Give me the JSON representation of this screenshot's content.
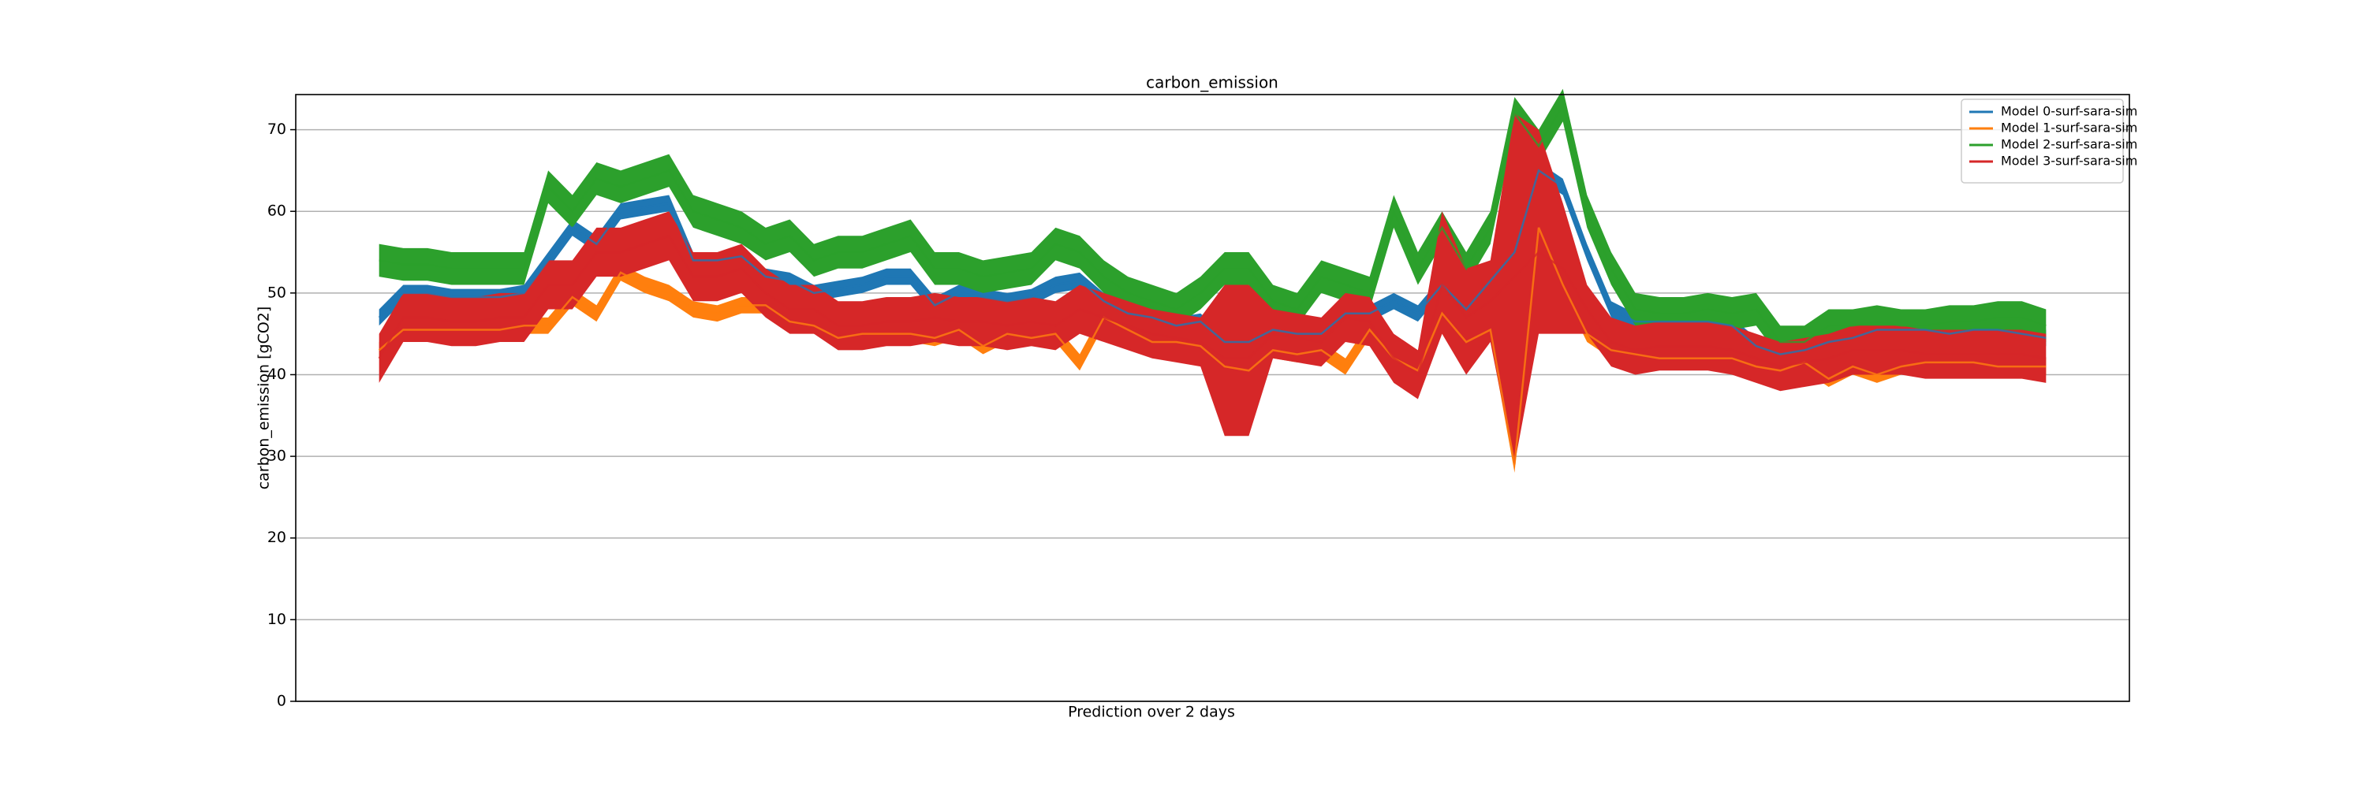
{
  "chart_data": {
    "type": "band-line",
    "title": "carbon_emission",
    "x_label": "Prediction over 2 days",
    "y_label": "carbon_emission [gCO2]",
    "ylim": [
      0,
      74.3
    ],
    "yticks": [
      0,
      10,
      20,
      30,
      40,
      50,
      60,
      70
    ],
    "grid": true,
    "legend": "upper right",
    "series": [
      {
        "name": "Model 0-surf-sara-sim",
        "color": "#1f77b4",
        "values": [
          47,
          50,
          50,
          49.5,
          49.5,
          49.5,
          50,
          54,
          58,
          56,
          60,
          60.5,
          61,
          54,
          54,
          54.5,
          52,
          51.5,
          50,
          50.5,
          51,
          52,
          52,
          48.5,
          50,
          49.5,
          49,
          49.5,
          51,
          51.5,
          49,
          47.5,
          47,
          46,
          46.5,
          44,
          44,
          45.5,
          45,
          45,
          47.5,
          47.5,
          49,
          47.5,
          51,
          48,
          51.5,
          55,
          65,
          63,
          55,
          48,
          46.5,
          46.5,
          46.5,
          46.5,
          46,
          43.5,
          42.5,
          43,
          44,
          44.5,
          45.5,
          45.5,
          45.5,
          45,
          45.5,
          45.5,
          45,
          44.5
        ],
        "lower": [
          46,
          49,
          49,
          48.5,
          48.5,
          48.5,
          49,
          53,
          57,
          55,
          59,
          59.5,
          60,
          53,
          53,
          53.5,
          51,
          50.5,
          49,
          49.5,
          50,
          51,
          51,
          47.5,
          49,
          48.5,
          48,
          48.5,
          50,
          50.5,
          48,
          46.5,
          46,
          45,
          45.5,
          43,
          43,
          44.5,
          44,
          44,
          46.5,
          46.5,
          48,
          46.5,
          50,
          47,
          50.5,
          54,
          64,
          62,
          54,
          47,
          45.5,
          45.5,
          45.5,
          45.5,
          45,
          42.5,
          41.5,
          42,
          43,
          43.5,
          44.5,
          44.5,
          44.5,
          44,
          44.5,
          44.5,
          44,
          43.5
        ],
        "upper": [
          48,
          51,
          51,
          50.5,
          50.5,
          50.5,
          51,
          55,
          59,
          57,
          61,
          61.5,
          62,
          55,
          55,
          55.5,
          53,
          52.5,
          51,
          51.5,
          52,
          53,
          53,
          49.5,
          51,
          50.5,
          50,
          50.5,
          52,
          52.5,
          50,
          48.5,
          48,
          47,
          47.5,
          45,
          45,
          46.5,
          46,
          46,
          48.5,
          48.5,
          50,
          48.5,
          52,
          49,
          52.5,
          56,
          66,
          64,
          56,
          49,
          47.5,
          47.5,
          47.5,
          47.5,
          47,
          44.5,
          43.5,
          44,
          45,
          45.5,
          46.5,
          46.5,
          46.5,
          46,
          46.5,
          46.5,
          46,
          45.5
        ]
      },
      {
        "name": "Model 1-surf-sara-sim",
        "color": "#ff7f0e",
        "values": [
          43,
          45.5,
          45.5,
          45.5,
          45.5,
          45.5,
          46,
          46,
          49.5,
          47.5,
          52.5,
          51,
          50,
          48,
          47.5,
          48.5,
          48.5,
          46.5,
          46,
          44.5,
          45,
          45,
          45,
          44.5,
          45.5,
          43.5,
          45,
          44.5,
          45,
          41.5,
          47,
          45.5,
          44,
          44,
          43.5,
          41,
          40.5,
          43,
          42.5,
          43,
          41,
          45.5,
          42,
          40.5,
          47.5,
          44,
          45.5,
          29,
          58,
          51,
          45,
          43,
          42.5,
          42,
          42,
          42,
          42,
          41,
          40.5,
          41.5,
          39.5,
          41,
          40,
          41,
          41.5,
          41.5,
          41.5,
          41,
          41,
          41
        ],
        "lower": [
          42,
          44.5,
          44.5,
          44.5,
          44.5,
          44.5,
          45,
          45,
          48.5,
          46.5,
          51.5,
          50,
          49,
          47,
          46.5,
          47.5,
          47.5,
          45.5,
          45,
          43.5,
          44,
          44,
          44,
          43.5,
          44.5,
          42.5,
          44,
          43.5,
          44,
          40.5,
          46,
          44.5,
          43,
          43,
          42.5,
          40,
          39.5,
          42,
          41.5,
          42,
          40,
          44.5,
          41,
          39.5,
          46.5,
          43,
          44.5,
          28,
          57,
          50,
          44,
          42,
          41.5,
          41,
          41,
          41,
          41,
          40,
          39.5,
          40.5,
          38.5,
          40,
          39,
          40,
          40.5,
          40.5,
          40.5,
          40,
          40,
          40
        ],
        "upper": [
          44,
          46.5,
          46.5,
          46.5,
          46.5,
          46.5,
          47,
          47,
          50.5,
          48.5,
          53.5,
          52,
          51,
          49,
          48.5,
          49.5,
          49.5,
          47.5,
          47,
          45.5,
          46,
          46,
          46,
          45.5,
          46.5,
          44.5,
          46,
          45.5,
          46,
          42.5,
          48,
          46.5,
          45,
          45,
          44.5,
          42,
          41.5,
          44,
          43.5,
          44,
          42,
          46.5,
          43,
          41.5,
          48.5,
          45,
          46.5,
          30,
          59,
          52,
          46,
          44,
          43.5,
          43,
          43,
          43,
          43,
          42,
          41.5,
          42.5,
          40.5,
          42,
          41,
          42,
          42.5,
          42.5,
          42.5,
          42,
          42,
          42
        ]
      },
      {
        "name": "Model 2-surf-sara-sim",
        "color": "#2ca02c",
        "values": [
          54,
          53.5,
          53.5,
          53,
          53,
          53,
          53,
          63,
          60,
          64,
          63,
          64,
          65,
          60,
          59,
          58,
          56,
          57,
          54,
          55,
          55,
          56,
          57,
          53,
          53,
          52,
          52.5,
          53,
          56,
          55,
          52,
          50,
          49,
          48,
          50,
          53,
          53,
          49,
          48,
          52,
          51,
          50,
          60,
          53,
          58,
          53,
          58,
          72,
          68,
          73,
          60,
          53,
          48,
          47.5,
          47.5,
          48,
          47.5,
          48,
          44,
          44,
          46,
          46,
          46.5,
          46,
          46,
          46.5,
          46.5,
          47,
          47,
          46
        ],
        "lower": [
          52,
          51.5,
          51.5,
          51,
          51,
          51,
          51,
          61,
          58,
          62,
          61,
          62,
          63,
          58,
          57,
          56,
          54,
          55,
          52,
          53,
          53,
          54,
          55,
          51,
          51,
          50,
          50.5,
          51,
          54,
          53,
          50,
          48,
          47,
          46,
          48,
          51,
          51,
          47,
          46,
          50,
          49,
          48,
          58,
          51,
          56,
          51,
          56,
          70,
          66,
          71,
          58,
          51,
          46,
          45.5,
          45.5,
          46,
          45.5,
          46,
          42,
          42,
          44,
          44,
          44.5,
          44,
          44,
          44.5,
          44.5,
          45,
          45,
          44
        ],
        "upper": [
          56,
          55.5,
          55.5,
          55,
          55,
          55,
          55,
          65,
          62,
          66,
          65,
          66,
          67,
          62,
          61,
          60,
          58,
          59,
          56,
          57,
          57,
          58,
          59,
          55,
          55,
          54,
          54.5,
          55,
          58,
          57,
          54,
          52,
          51,
          50,
          52,
          55,
          55,
          51,
          50,
          54,
          53,
          52,
          62,
          55,
          60,
          55,
          60,
          74,
          70,
          75,
          62,
          55,
          50,
          49.5,
          49.5,
          50,
          49.5,
          50,
          46,
          46,
          48,
          48,
          48.5,
          48,
          48,
          48.5,
          48.5,
          49,
          49,
          48
        ]
      },
      {
        "name": "Model 3-surf-sara-sim",
        "color": "#d62728",
        "values": [
          42,
          47,
          47,
          46.5,
          46.5,
          47,
          47,
          51,
          51,
          55,
          55,
          56,
          57,
          52,
          52,
          53,
          50,
          48,
          48,
          46,
          46,
          46.5,
          46.5,
          47,
          46.5,
          46.5,
          46,
          46.5,
          46,
          48,
          47,
          46,
          45,
          44.5,
          44,
          42,
          42,
          45,
          44.5,
          44,
          47,
          46.5,
          42,
          40,
          51,
          47,
          49,
          52,
          55,
          53,
          48,
          44,
          43,
          43.5,
          43.5,
          43.5,
          43,
          42,
          41,
          41.5,
          42,
          43,
          43,
          43,
          42.5,
          42.5,
          42.5,
          42.5,
          42.5,
          42
        ],
        "lower": [
          39,
          44,
          44,
          43.5,
          43.5,
          44,
          44,
          48,
          48,
          52,
          52,
          53,
          54,
          49,
          49,
          50,
          47,
          45,
          45,
          43,
          43,
          43.5,
          43.5,
          44,
          43.5,
          43.5,
          43,
          43.5,
          43,
          45,
          44,
          43,
          42,
          41.5,
          41,
          32.5,
          32.5,
          42,
          41.5,
          41,
          44,
          43.5,
          39,
          37,
          45,
          40,
          44,
          29,
          45,
          45,
          45,
          41,
          40,
          40.5,
          40.5,
          40.5,
          40,
          39,
          38,
          38.5,
          39,
          40,
          40,
          40,
          39.5,
          39.5,
          39.5,
          39.5,
          39.5,
          39
        ],
        "upper": [
          45,
          50,
          50,
          49.5,
          49.5,
          50,
          50,
          54,
          54,
          58,
          58,
          59,
          60,
          55,
          55,
          56,
          53,
          51,
          51,
          49,
          49,
          49.5,
          49.5,
          50,
          49.5,
          49.5,
          49,
          49.5,
          49,
          51,
          50,
          49,
          48,
          47.5,
          47,
          51,
          51,
          48,
          47.5,
          47,
          50,
          49.5,
          45,
          43,
          60,
          53,
          54,
          72,
          70,
          61,
          51,
          47,
          46,
          46.5,
          46.5,
          46.5,
          46,
          45,
          44,
          44.5,
          45,
          46,
          46,
          46,
          45.5,
          45.5,
          45.5,
          45.5,
          45.5,
          45
        ]
      }
    ]
  }
}
